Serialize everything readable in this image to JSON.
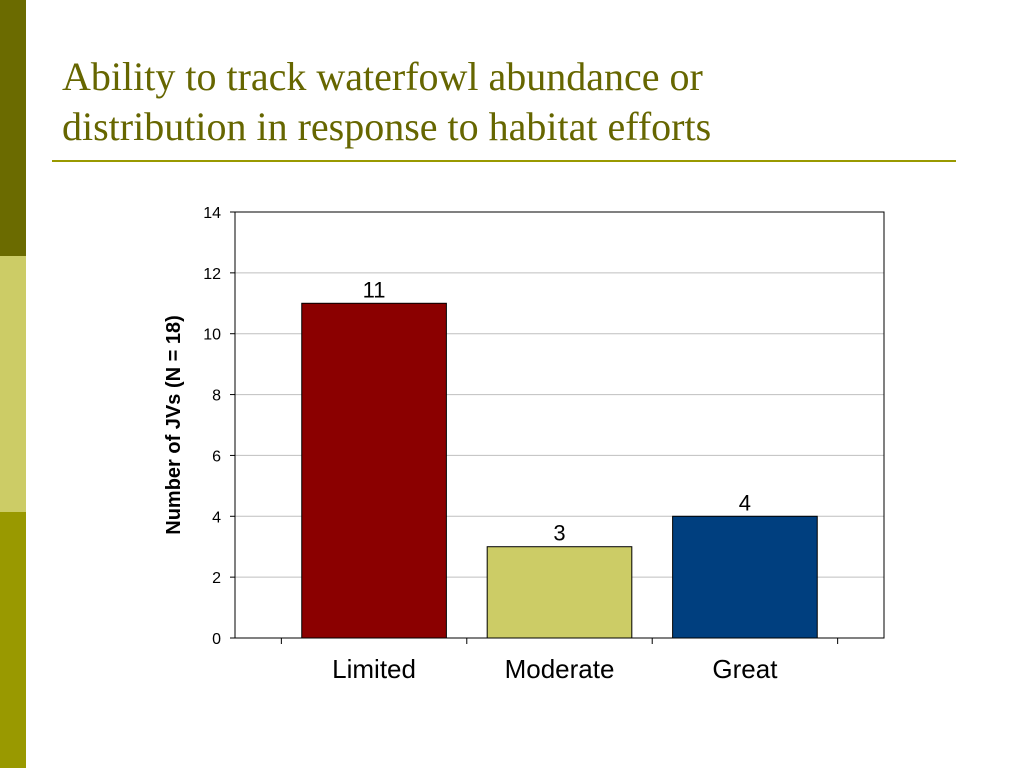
{
  "slide": {
    "title_line1": "Ability to track waterfowl abundance or",
    "title_line2": "distribution in response to habitat efforts"
  },
  "colors": {
    "band_top": "#6b6b00",
    "band_middle": "#cccc66",
    "band_bottom": "#999900",
    "title": "#666600",
    "rule": "#999900"
  },
  "chart_data": {
    "type": "bar",
    "title": "",
    "xlabel": "",
    "ylabel": "Number of JVs (N = 18)",
    "categories": [
      "Limited",
      "Moderate",
      "Great"
    ],
    "values": [
      11,
      3,
      4
    ],
    "data_labels": [
      "11",
      "3",
      "4"
    ],
    "bar_colors": [
      "#8b0000",
      "#cccc66",
      "#003f7f"
    ],
    "ylim": [
      0,
      14
    ],
    "yticks": [
      0,
      2,
      4,
      6,
      8,
      10,
      12,
      14
    ],
    "grid": true,
    "legend": "none"
  }
}
